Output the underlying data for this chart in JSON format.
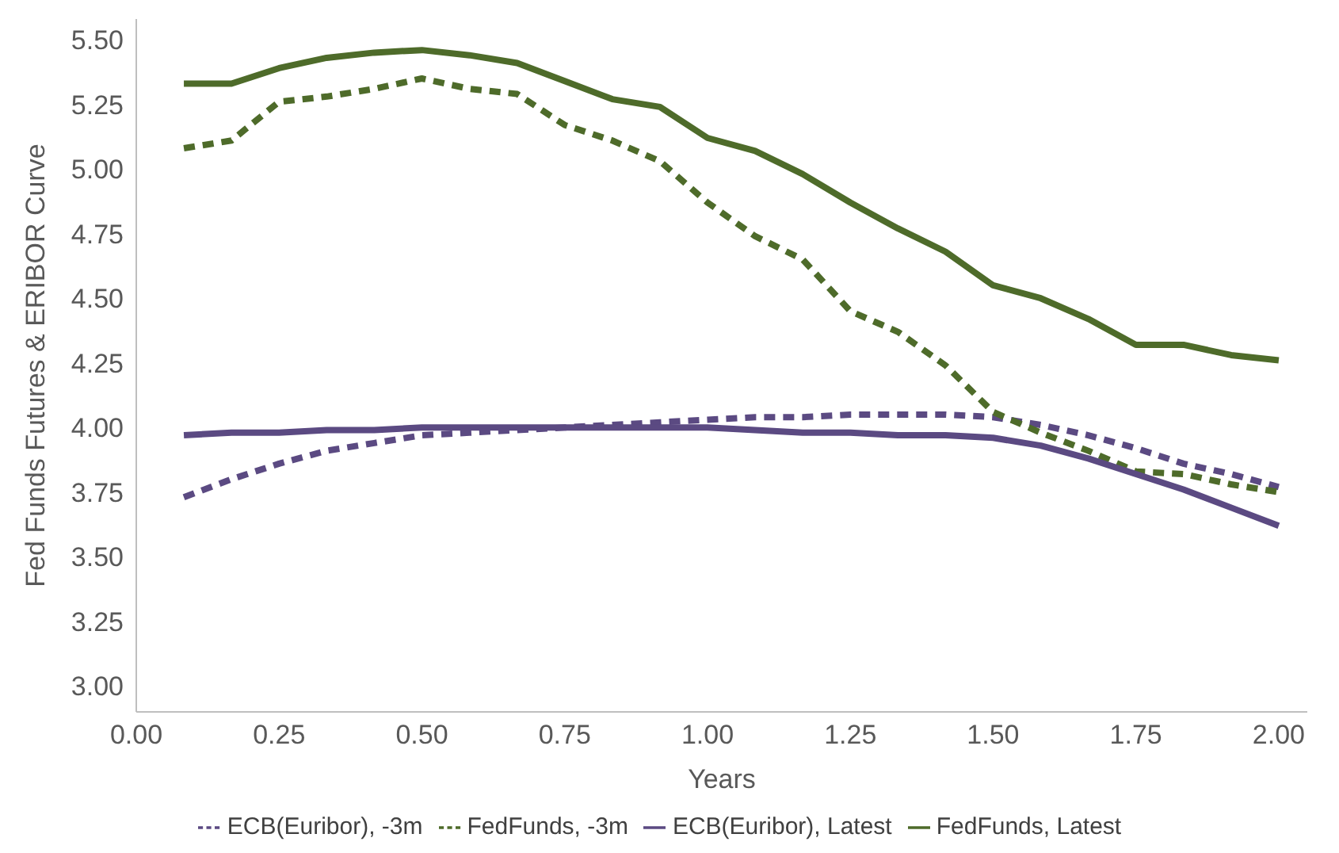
{
  "chart_data": {
    "type": "line",
    "xlabel": "Years",
    "ylabel": "Fed Funds Futures & ERIBOR Curve",
    "x": [
      0.0833,
      0.1667,
      0.25,
      0.3333,
      0.4167,
      0.5,
      0.5833,
      0.6667,
      0.75,
      0.8333,
      0.9167,
      1.0,
      1.0833,
      1.1667,
      1.25,
      1.3333,
      1.4167,
      1.5,
      1.5833,
      1.6667,
      1.75,
      1.8333,
      1.9167,
      2.0
    ],
    "xlim": [
      0,
      2.05
    ],
    "xticks": [
      {
        "value": 0,
        "label": "0.00"
      },
      {
        "value": 0.25,
        "label": "0.25"
      },
      {
        "value": 0.5,
        "label": "0.50"
      },
      {
        "value": 0.75,
        "label": "0.75"
      },
      {
        "value": 1,
        "label": "1.00"
      },
      {
        "value": 1.25,
        "label": "1.25"
      },
      {
        "value": 1.5,
        "label": "1.50"
      },
      {
        "value": 1.75,
        "label": "1.75"
      },
      {
        "value": 2,
        "label": "2.00"
      }
    ],
    "ylim": [
      2.9,
      5.58
    ],
    "yticks": [
      {
        "value": 3,
        "label": "3.00"
      },
      {
        "value": 3.25,
        "label": "3.25"
      },
      {
        "value": 3.5,
        "label": "3.50"
      },
      {
        "value": 3.75,
        "label": "3.75"
      },
      {
        "value": 4,
        "label": "4.00"
      },
      {
        "value": 4.25,
        "label": "4.25"
      },
      {
        "value": 4.5,
        "label": "4.50"
      },
      {
        "value": 4.75,
        "label": "4.75"
      },
      {
        "value": 5,
        "label": "5.00"
      },
      {
        "value": 5.25,
        "label": "5.25"
      },
      {
        "value": 5.5,
        "label": "5.50"
      }
    ],
    "grid": false,
    "legend": "bottom",
    "marker": "none",
    "series": [
      {
        "name": "ECB(Euribor), -3m",
        "color": "#5b4a82",
        "line_style": "dashed",
        "values": [
          3.73,
          3.8,
          3.86,
          3.91,
          3.94,
          3.97,
          3.98,
          3.99,
          4.0,
          4.01,
          4.02,
          4.03,
          4.04,
          4.04,
          4.05,
          4.05,
          4.05,
          4.04,
          4.01,
          3.97,
          3.92,
          3.86,
          3.82,
          3.77
        ]
      },
      {
        "name": "FedFunds, -3m",
        "color": "#4e6b2a",
        "line_style": "dashed",
        "values": [
          5.08,
          5.11,
          5.26,
          5.28,
          5.31,
          5.35,
          5.31,
          5.29,
          5.17,
          5.11,
          5.03,
          4.87,
          4.74,
          4.65,
          4.45,
          4.37,
          4.24,
          4.06,
          3.98,
          3.91,
          3.83,
          3.82,
          3.78,
          3.75
        ]
      },
      {
        "name": "ECB(Euribor), Latest",
        "color": "#5b4a82",
        "line_style": "solid",
        "values": [
          3.97,
          3.98,
          3.98,
          3.99,
          3.99,
          4.0,
          4.0,
          4.0,
          4.0,
          4.0,
          4.0,
          4.0,
          3.99,
          3.98,
          3.98,
          3.97,
          3.97,
          3.96,
          3.93,
          3.88,
          3.82,
          3.76,
          3.69,
          3.62
        ]
      },
      {
        "name": "FedFunds, Latest",
        "color": "#4e6b2a",
        "line_style": "solid",
        "values": [
          5.33,
          5.33,
          5.39,
          5.43,
          5.45,
          5.46,
          5.44,
          5.41,
          5.34,
          5.27,
          5.24,
          5.12,
          5.07,
          4.98,
          4.87,
          4.77,
          4.68,
          4.55,
          4.5,
          4.42,
          4.32,
          4.32,
          4.28,
          4.26
        ]
      }
    ]
  }
}
